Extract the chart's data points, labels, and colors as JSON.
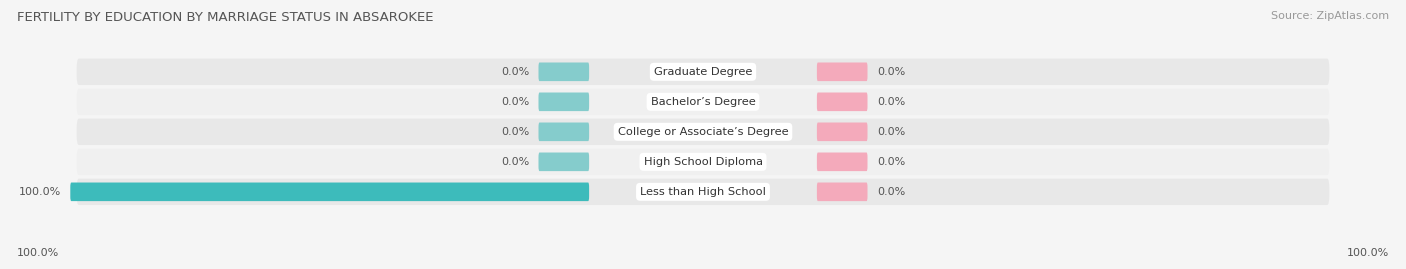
{
  "title": "FERTILITY BY EDUCATION BY MARRIAGE STATUS IN ABSAROKEE",
  "source": "Source: ZipAtlas.com",
  "categories": [
    "Less than High School",
    "High School Diploma",
    "College or Associate’s Degree",
    "Bachelor’s Degree",
    "Graduate Degree"
  ],
  "married_values": [
    100.0,
    0.0,
    0.0,
    0.0,
    0.0
  ],
  "unmarried_values": [
    0.0,
    0.0,
    0.0,
    0.0,
    0.0
  ],
  "married_color": "#3DBBBB",
  "unmarried_color": "#F78FAA",
  "married_stub_color": "#85CCCC",
  "unmarried_stub_color": "#F4AABB",
  "title_fontsize": 9.5,
  "label_fontsize": 8,
  "source_fontsize": 8,
  "bottom_left_label": "100.0%",
  "bottom_right_label": "100.0%",
  "row_bg_color": "#e8e8e8",
  "row_alt_bg_color": "#f0f0f0",
  "fig_bg_color": "#f5f5f5"
}
